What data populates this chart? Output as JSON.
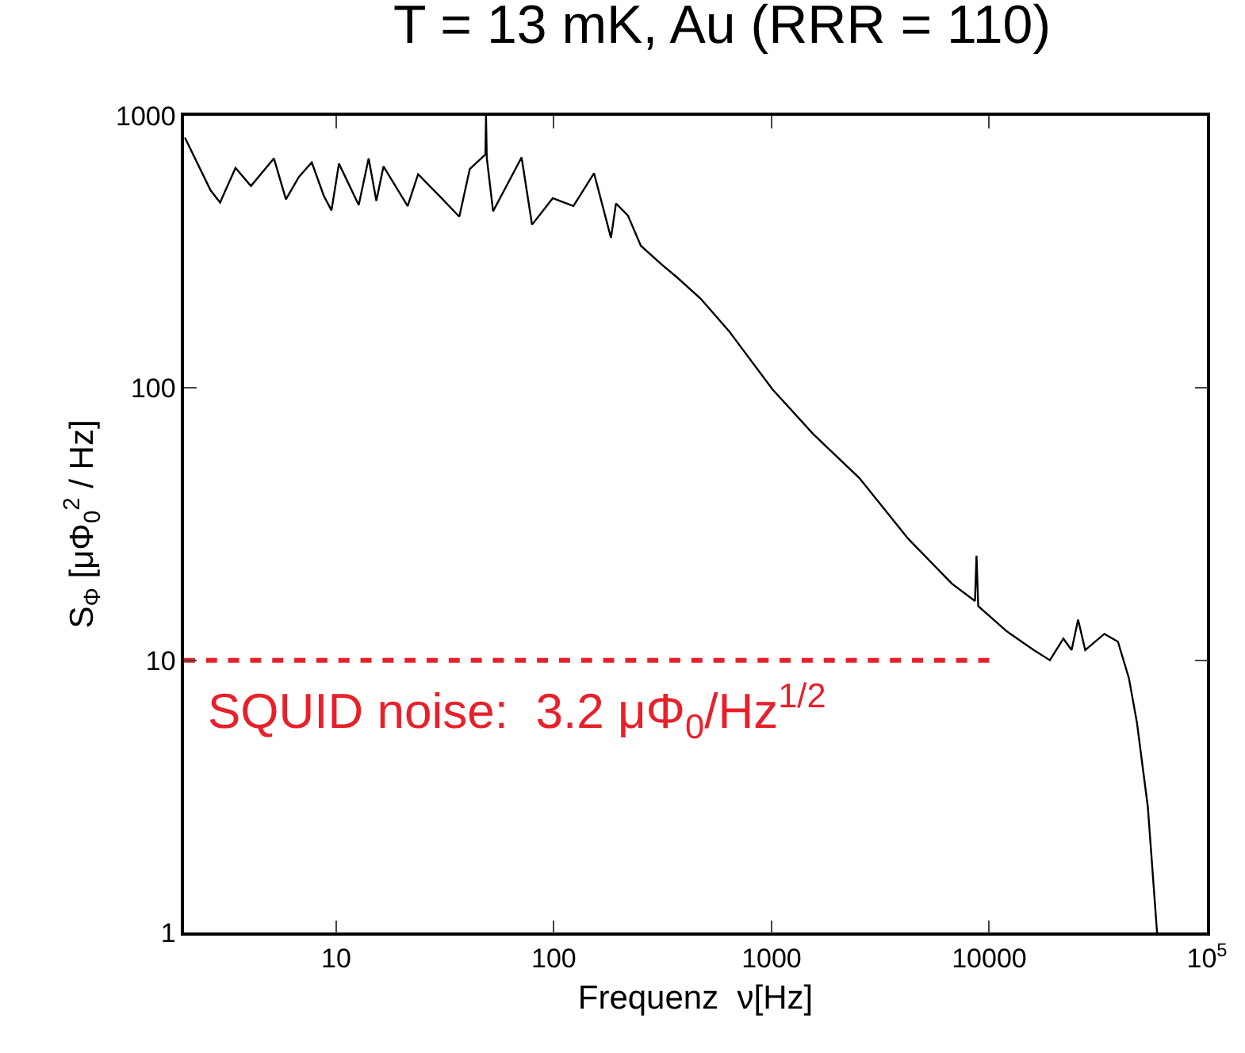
{
  "chart_data": {
    "type": "line",
    "title": "T = 13 mK, Au (RRR = 110)",
    "xlabel": "Frequenz  ν[Hz]",
    "ylabel": "S$_{Φ}$ [μΦ$_{0}$$^{2}$ / Hz]",
    "log": "xy",
    "marker": "none",
    "xlim": [
      2,
      100000
    ],
    "ylim": [
      1,
      1000
    ],
    "xticks": [
      10,
      100,
      1000,
      10000,
      {
        "value": 100000,
        "label": "10$^{5}$"
      }
    ],
    "yticks": [
      1,
      10,
      100,
      1000
    ],
    "series": [
      {
        "color": "#000000",
        "line_style": "solid",
        "x": [
          2.02,
          2.65,
          2.93,
          3.45,
          4.06,
          5.18,
          5.88,
          6.74,
          7.73,
          8.77,
          9.52,
          10.3,
          12.7,
          14.1,
          15.3,
          16.5,
          21.3,
          23.8,
          30.5,
          36.8,
          41.1,
          48.5,
          48.8,
          49.2,
          52.6,
          71.1,
          79.4,
          98.9,
          123,
          153,
          183,
          193,
          219,
          251,
          313,
          368,
          472,
          637,
          1010,
          1550,
          2530,
          4250,
          6740,
          8600,
          8740,
          8900,
          12000,
          16000,
          19000,
          21900,
          23900,
          25600,
          27600,
          33800,
          39000,
          43800,
          47700,
          53500,
          59000
        ],
        "values": [
          832,
          532,
          480,
          643,
          552,
          697,
          493,
          596,
          674,
          509,
          449,
          667,
          470,
          697,
          487,
          652,
          466,
          610,
          498,
          426,
          637,
          721,
          1000,
          700,
          446,
          703,
          398,
          498,
          466,
          615,
          356,
          476,
          430,
          333,
          284,
          255,
          213,
          162,
          98.9,
          67.9,
          46.7,
          27.9,
          19.1,
          16.5,
          24.2,
          15.8,
          12.8,
          10.9,
          10.0,
          12.0,
          10.9,
          14.1,
          10.9,
          12.5,
          11.7,
          8.6,
          5.9,
          2.9,
          1.0
        ]
      },
      {
        "color": "#e8202a",
        "line_style": "dashed",
        "x": [
          2,
          10000
        ],
        "values": [
          10,
          10
        ]
      }
    ],
    "annotations": [
      "SQUID noise:  3.2 μΦ$_{0}$/Hz$^{1/2}$"
    ]
  }
}
